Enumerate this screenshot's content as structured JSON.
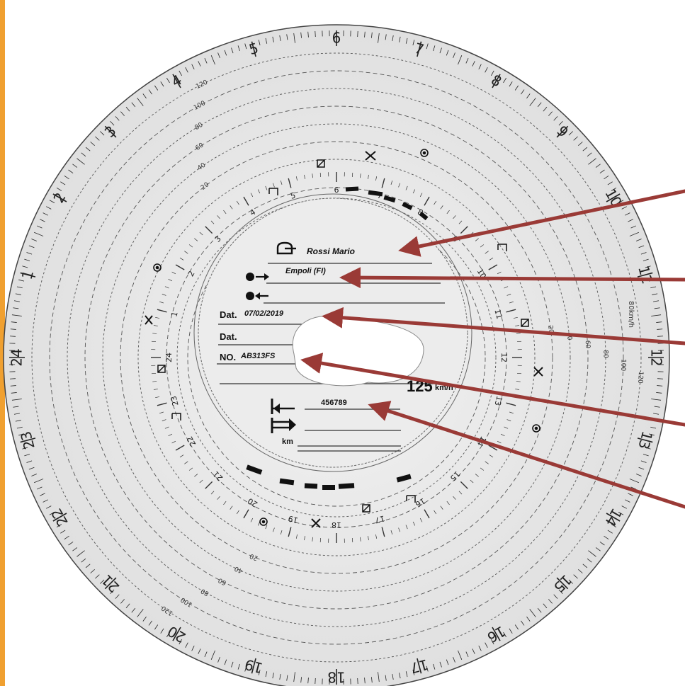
{
  "disc": {
    "hours": [
      "24",
      "1",
      "2",
      "3",
      "4",
      "5",
      "6",
      "7",
      "8",
      "9",
      "10",
      "11",
      "12",
      "13",
      "14",
      "15",
      "16",
      "17",
      "18",
      "19",
      "20",
      "21",
      "22",
      "23"
    ],
    "speed_scale": [
      "20",
      "40",
      "60",
      "80",
      "100",
      "120",
      "125"
    ],
    "speed_unit": "80km/h",
    "max_speed_label": "125",
    "max_speed_unit": "km/h"
  },
  "form": {
    "driver_name": "Rossi Mario",
    "start_place": "Empoli (FI)",
    "end_place": "",
    "date_label_1": "Dat.",
    "date_value_1": "07/02/2019",
    "date_label_2": "Dat.",
    "date_value_2": "",
    "plate_label": "NO.",
    "plate_value": "AB313FS",
    "odometer_start": "456789",
    "odometer_end": "",
    "km_label": "km"
  },
  "icons": [
    "driver-wheel-icon",
    "start-place-icon",
    "end-place-icon",
    "odometer-start-icon",
    "odometer-end-icon",
    "rest-bed-icon",
    "work-hammers-icon",
    "availability-icon",
    "driving-wheel-icon"
  ],
  "colors": {
    "arrow": "#9a3a36",
    "paper": "#e8e8e8",
    "edge_accent": "#f0a030"
  }
}
